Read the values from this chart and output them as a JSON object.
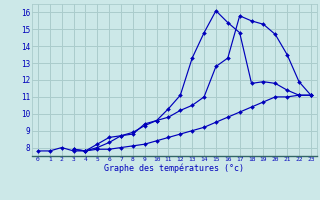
{
  "title": "Graphe des températures (°c)",
  "bg_color": "#cce8e8",
  "grid_color": "#aacccc",
  "line_color": "#0000bb",
  "axis_label_color": "#0000bb",
  "xlim": [
    -0.5,
    23.5
  ],
  "ylim": [
    7.5,
    16.5
  ],
  "xticks": [
    0,
    1,
    2,
    3,
    4,
    5,
    6,
    7,
    8,
    9,
    10,
    11,
    12,
    13,
    14,
    15,
    16,
    17,
    18,
    19,
    20,
    21,
    22,
    23
  ],
  "yticks": [
    8,
    9,
    10,
    11,
    12,
    13,
    14,
    15,
    16
  ],
  "line1_x": [
    0,
    1,
    2,
    3,
    4,
    5,
    6,
    7,
    8,
    9,
    10,
    11,
    12,
    13,
    14,
    15,
    16,
    17,
    18,
    19,
    20,
    21,
    22,
    23
  ],
  "line1_y": [
    7.8,
    7.8,
    8.0,
    7.8,
    7.8,
    7.9,
    7.9,
    8.0,
    8.1,
    8.2,
    8.4,
    8.6,
    8.8,
    9.0,
    9.2,
    9.5,
    9.8,
    10.1,
    10.4,
    10.7,
    11.0,
    11.0,
    11.1,
    11.1
  ],
  "line2_x": [
    3,
    4,
    5,
    6,
    7,
    8,
    9,
    10,
    11,
    12,
    13,
    14,
    15,
    16,
    17,
    18,
    19,
    20,
    21,
    22,
    23
  ],
  "line2_y": [
    7.9,
    7.8,
    8.0,
    8.3,
    8.7,
    8.8,
    9.4,
    9.6,
    10.3,
    11.1,
    13.3,
    14.8,
    16.1,
    15.4,
    14.8,
    11.8,
    11.9,
    11.8,
    11.4,
    11.1,
    11.1
  ],
  "line3_x": [
    3,
    4,
    5,
    6,
    7,
    8,
    9,
    10,
    11,
    12,
    13,
    14,
    15,
    16,
    17,
    18,
    19,
    20,
    21,
    22,
    23
  ],
  "line3_y": [
    7.9,
    7.8,
    8.2,
    8.6,
    8.7,
    8.9,
    9.3,
    9.6,
    9.8,
    10.2,
    10.5,
    11.0,
    12.8,
    13.3,
    15.8,
    15.5,
    15.3,
    14.7,
    13.5,
    11.9,
    11.1
  ]
}
